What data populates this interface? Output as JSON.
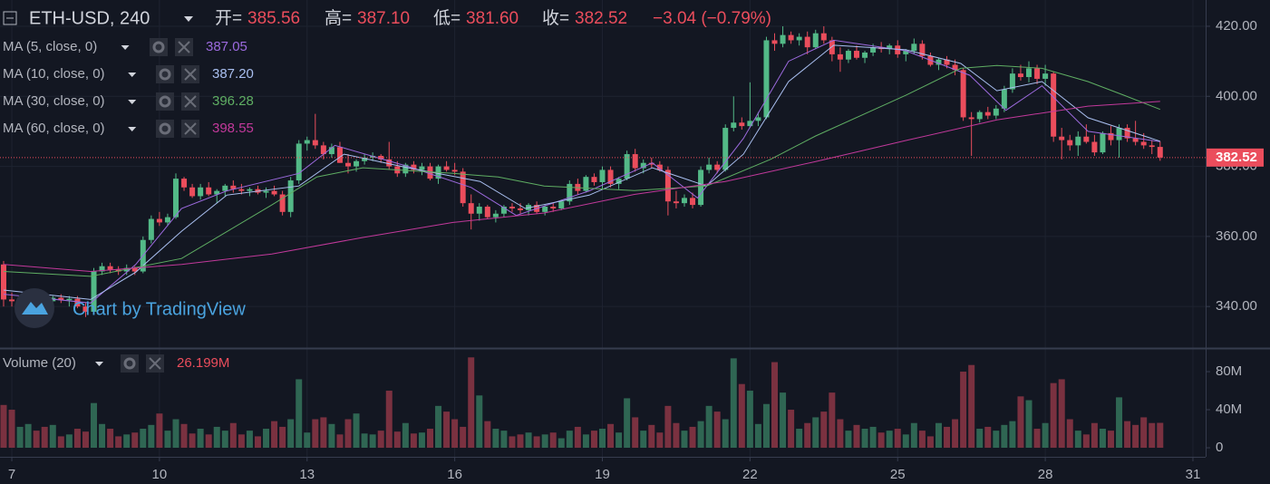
{
  "header": {
    "symbol": "ETH-USD, 240",
    "open_label": "开=",
    "open": "385.56",
    "high_label": "高=",
    "high": "387.10",
    "low_label": "低=",
    "low": "381.60",
    "close_label": "收=",
    "close": "382.52",
    "change": "−3.04 (−0.79%)"
  },
  "watermark": "Chart by TradingView",
  "chart_data": {
    "type": "candlestick",
    "up_color": "#53b987",
    "down_color": "#eb4d5c",
    "grid": true,
    "ylim": [
      328.4,
      427.5
    ],
    "yticks": [
      {
        "value": 340,
        "label": "340.00"
      },
      {
        "value": 360,
        "label": "360.00"
      },
      {
        "value": 380,
        "label": "380.00"
      },
      {
        "value": 400,
        "label": "400.00"
      },
      {
        "value": 420,
        "label": "420.00"
      }
    ],
    "xlim": [
      -0.44,
      146.55
    ],
    "xticks": [
      {
        "value": 1,
        "label": "7"
      },
      {
        "value": 19,
        "label": "10"
      },
      {
        "value": 37,
        "label": "13"
      },
      {
        "value": 55,
        "label": "16"
      },
      {
        "value": 73,
        "label": "19"
      },
      {
        "value": 91,
        "label": "22"
      },
      {
        "value": 109,
        "label": "25"
      },
      {
        "value": 127,
        "label": "28"
      },
      {
        "value": 145,
        "label": "31"
      }
    ],
    "candles": [
      [
        352,
        353,
        340,
        342
      ],
      [
        342,
        344,
        340,
        341.5
      ],
      [
        341.5,
        343,
        340,
        342.5
      ],
      [
        342.5,
        344,
        341,
        343
      ],
      [
        343,
        344,
        341.5,
        342
      ],
      [
        342,
        343.5,
        340.5,
        341.5
      ],
      [
        341.5,
        343,
        340,
        342.5
      ],
      [
        342.5,
        343.5,
        341,
        341.8
      ],
      [
        341.8,
        343,
        340,
        342.2
      ],
      [
        342.2,
        343,
        339.5,
        340
      ],
      [
        340,
        341,
        337,
        338.5
      ],
      [
        338.5,
        351,
        338,
        350
      ],
      [
        350,
        352.5,
        349,
        351.5
      ],
      [
        351.5,
        352.5,
        349.5,
        350.5
      ],
      [
        350.5,
        351.5,
        349,
        350
      ],
      [
        350,
        352,
        349,
        351
      ],
      [
        351,
        351.5,
        349,
        350
      ],
      [
        350,
        360,
        349.5,
        359
      ],
      [
        359,
        366,
        358,
        365
      ],
      [
        365,
        367,
        363,
        364
      ],
      [
        364,
        366.5,
        363,
        365.5
      ],
      [
        365.5,
        378,
        365,
        376.5
      ],
      [
        376.5,
        377,
        373,
        374
      ],
      [
        374,
        375,
        371,
        371.5
      ],
      [
        371.5,
        375,
        370.5,
        374
      ],
      [
        374,
        375.5,
        371.5,
        372
      ],
      [
        372,
        373.5,
        369.5,
        373
      ],
      [
        373,
        375,
        371.5,
        374.5
      ],
      [
        374.5,
        376,
        372.5,
        373.5
      ],
      [
        373.5,
        375,
        372,
        373
      ],
      [
        373,
        374,
        371.5,
        373.5
      ],
      [
        373.5,
        374.5,
        372,
        372.5
      ],
      [
        372.5,
        374,
        371,
        373
      ],
      [
        373,
        374.5,
        371.5,
        372
      ],
      [
        372,
        373,
        366,
        367
      ],
      [
        367,
        377,
        365.5,
        376
      ],
      [
        376,
        387.5,
        375,
        386.5
      ],
      [
        386.5,
        388.5,
        384.5,
        387.5
      ],
      [
        387.5,
        395,
        385,
        386
      ],
      [
        386,
        387,
        382,
        383.5
      ],
      [
        383.5,
        386.5,
        382.5,
        385.5
      ],
      [
        385.5,
        387,
        381,
        381
      ],
      [
        381,
        383.5,
        378,
        380
      ],
      [
        380,
        382,
        378.5,
        381.5
      ],
      [
        381.5,
        383.5,
        380.5,
        382.5
      ],
      [
        382.5,
        384,
        381.5,
        383
      ],
      [
        383,
        383.5,
        381,
        382
      ],
      [
        382,
        387,
        379,
        380
      ],
      [
        380,
        381.5,
        377,
        378
      ],
      [
        378,
        381,
        377,
        380.5
      ],
      [
        380.5,
        381.5,
        378,
        379
      ],
      [
        379,
        381,
        377.5,
        380
      ],
      [
        380,
        381,
        376,
        376.5
      ],
      [
        376.5,
        380.5,
        375,
        380
      ],
      [
        380,
        381.5,
        378.5,
        379
      ],
      [
        379,
        381,
        377.5,
        378.5
      ],
      [
        378.5,
        379.5,
        368.5,
        369.5
      ],
      [
        369.5,
        372,
        362,
        366.5
      ],
      [
        366.5,
        369.5,
        364.5,
        368.5
      ],
      [
        368.5,
        369,
        365,
        365.5
      ],
      [
        365.5,
        367.5,
        364,
        366.5
      ],
      [
        366.5,
        369,
        365.5,
        368.5
      ],
      [
        368.5,
        369.5,
        367,
        368
      ],
      [
        368,
        369.5,
        366.5,
        367.5
      ],
      [
        367.5,
        369.5,
        366,
        369
      ],
      [
        369,
        370,
        366.5,
        367
      ],
      [
        367,
        369,
        366,
        368.5
      ],
      [
        368.5,
        369.5,
        367,
        368
      ],
      [
        368,
        370.5,
        367.5,
        370
      ],
      [
        370,
        376,
        369,
        375
      ],
      [
        375,
        376.5,
        372,
        373
      ],
      [
        373,
        377.5,
        372.5,
        377
      ],
      [
        377,
        378,
        374.5,
        375.5
      ],
      [
        375.5,
        380,
        373.5,
        379
      ],
      [
        379,
        380,
        374,
        375
      ],
      [
        375,
        377,
        373.5,
        376.5
      ],
      [
        376.5,
        384.5,
        376,
        383.5
      ],
      [
        383.5,
        385,
        378.5,
        379.5
      ],
      [
        379.5,
        382,
        378,
        381
      ],
      [
        381,
        382.5,
        379.5,
        380.5
      ],
      [
        380.5,
        381.5,
        378.5,
        379
      ],
      [
        379,
        380,
        366,
        370
      ],
      [
        370,
        373,
        368,
        369.5
      ],
      [
        369.5,
        372,
        368.5,
        371
      ],
      [
        371,
        372.5,
        368,
        369
      ],
      [
        369,
        380,
        368.5,
        379
      ],
      [
        379,
        382.5,
        378,
        380.5
      ],
      [
        380.5,
        381.5,
        378,
        379
      ],
      [
        379,
        392,
        378.5,
        391
      ],
      [
        391,
        400,
        390,
        392.5
      ],
      [
        392.5,
        394,
        390.5,
        391.5
      ],
      [
        391.5,
        404,
        391,
        393
      ],
      [
        393,
        395.5,
        391.5,
        394
      ],
      [
        394,
        417,
        393.5,
        416
      ],
      [
        416,
        418,
        413,
        415
      ],
      [
        415,
        420,
        414,
        417.5
      ],
      [
        417.5,
        418.5,
        415,
        416
      ],
      [
        416,
        418,
        414.5,
        417
      ],
      [
        417,
        418.5,
        412,
        414
      ],
      [
        414,
        419,
        413.5,
        418
      ],
      [
        418,
        420,
        415,
        416
      ],
      [
        416,
        417,
        410,
        412
      ],
      [
        412,
        414,
        407,
        410.5
      ],
      [
        410.5,
        413.5,
        409.5,
        413
      ],
      [
        413,
        414.5,
        410.5,
        411
      ],
      [
        411,
        413,
        409.5,
        412.5
      ],
      [
        412.5,
        415,
        411.5,
        414
      ],
      [
        414,
        415.5,
        412.5,
        413.5
      ],
      [
        413.5,
        415,
        412,
        414.5
      ],
      [
        414.5,
        416,
        411,
        412
      ],
      [
        412,
        413.5,
        410,
        413
      ],
      [
        413,
        416.5,
        412,
        415
      ],
      [
        415,
        416,
        410.5,
        411.5
      ],
      [
        411.5,
        412.5,
        408.5,
        409
      ],
      [
        409,
        411,
        407.5,
        410.5
      ],
      [
        410.5,
        411.5,
        408,
        409
      ],
      [
        409,
        410.5,
        406,
        407.5
      ],
      [
        407.5,
        408,
        393,
        394
      ],
      [
        394,
        395.5,
        383,
        393.5
      ],
      [
        393.5,
        396,
        392.5,
        395.5
      ],
      [
        395.5,
        397,
        393.5,
        394.5
      ],
      [
        394.5,
        397.5,
        393.5,
        396.5
      ],
      [
        396.5,
        403,
        395.5,
        402
      ],
      [
        402,
        408,
        401,
        406.5
      ],
      [
        406.5,
        409,
        404.5,
        405.5
      ],
      [
        405.5,
        410,
        404,
        408
      ],
      [
        408,
        409,
        403.5,
        405
      ],
      [
        405,
        409,
        403,
        406.5
      ],
      [
        406.5,
        407,
        387,
        388.5
      ],
      [
        388.5,
        391,
        382,
        387.5
      ],
      [
        387.5,
        389,
        384.5,
        386
      ],
      [
        386,
        390,
        383,
        388.5
      ],
      [
        388.5,
        392,
        386.5,
        387
      ],
      [
        387,
        389,
        383,
        384
      ],
      [
        384,
        390,
        383.5,
        389.5
      ],
      [
        389.5,
        391.5,
        386,
        387.5
      ],
      [
        387.5,
        392,
        382.5,
        391
      ],
      [
        391,
        392,
        387,
        388
      ],
      [
        388,
        393,
        386,
        387
      ],
      [
        387,
        389.5,
        385,
        386
      ],
      [
        386,
        387.5,
        383.5,
        385.56
      ],
      [
        385.56,
        387.1,
        381.6,
        382.52
      ]
    ],
    "ma": [
      {
        "name": "MA (5, close, 0)",
        "color": "#9c6ade",
        "last": 387.05,
        "last_label": "387.05",
        "x": [
          0,
          10.6,
          16.1,
          21.7,
          27.2,
          36,
          40.4,
          49.3,
          57,
          62.5,
          71.4,
          79.1,
          84.6,
          90.2,
          95.7,
          101.2,
          110,
          117.8,
          122.2,
          126.6,
          132.2,
          141
        ],
        "values": [
          343.5,
          341,
          352,
          368,
          373,
          378,
          386,
          380,
          374,
          366,
          373,
          381,
          371,
          388,
          410,
          416,
          413,
          406,
          396,
          403,
          390,
          387.05
        ]
      },
      {
        "name": "MA (10, close, 0)",
        "color": "#a9bff0",
        "last": 387.2,
        "last_label": "387.20",
        "x": [
          0,
          10.6,
          16.1,
          21.7,
          27.2,
          36,
          41.5,
          49.3,
          58.1,
          63.6,
          71.4,
          79.1,
          85.7,
          90.2,
          95.7,
          101.2,
          110,
          116.7,
          121.1,
          126.6,
          132.2,
          141
        ],
        "values": [
          344.7,
          342,
          349.8,
          361.5,
          371.8,
          374.4,
          383.5,
          379.6,
          375.7,
          368,
          371.8,
          379.6,
          374.4,
          383.5,
          404.2,
          414.6,
          413.3,
          409.4,
          401.6,
          404.2,
          393.9,
          387.2
        ]
      },
      {
        "name": "MA (30, close, 0)",
        "color": "#5fae63",
        "last": 396.28,
        "last_label": "396.28",
        "x": [
          0,
          10.6,
          21.7,
          32.7,
          38.2,
          43.8,
          54.8,
          60.3,
          65.9,
          76.9,
          85.7,
          93.5,
          99,
          110,
          116.7,
          121.1,
          126.6,
          132.2,
          136.6,
          141
        ],
        "values": [
          350,
          348.6,
          353.7,
          369,
          377,
          379.6,
          378,
          377,
          374.4,
          373.1,
          374.4,
          382,
          388.7,
          400.3,
          408,
          408.8,
          408,
          404.2,
          400.3,
          396.28
        ]
      },
      {
        "name": "MA (60, close, 0)",
        "color": "#c2399b",
        "last": 398.55,
        "last_label": "398.55",
        "x": [
          0,
          10.6,
          21.7,
          32.7,
          43.8,
          54.8,
          65.9,
          76.9,
          88,
          99,
          110,
          121.1,
          132.2,
          141
        ],
        "values": [
          352,
          350,
          352,
          355,
          359.7,
          364,
          366.7,
          372,
          375.7,
          381.4,
          387.4,
          393.3,
          397.2,
          398.55
        ]
      }
    ],
    "volume": {
      "name": "Volume (20)",
      "up_color": "#2f6653",
      "down_color": "#7a3140",
      "last_label": "26.199M",
      "ylim": [
        -9.5,
        102.9
      ],
      "yticks": [
        0,
        {
          "value": 40,
          "label": "40M"
        },
        {
          "value": 80,
          "label": "80M"
        }
      ],
      "values": [
        45,
        40,
        22,
        25,
        18,
        22,
        24,
        12,
        14,
        20,
        17,
        47,
        25,
        20,
        12,
        14,
        16,
        20,
        24,
        36,
        18,
        30,
        25,
        15,
        20,
        14,
        22,
        18,
        26,
        14,
        18,
        12,
        20,
        28,
        22,
        30,
        72,
        16,
        30,
        32,
        25,
        14,
        30,
        36,
        15,
        14,
        18,
        60,
        17,
        26,
        15,
        16,
        20,
        44,
        38,
        30,
        22,
        95,
        55,
        28,
        20,
        18,
        12,
        14,
        16,
        12,
        14,
        16,
        10,
        18,
        22,
        14,
        18,
        20,
        25,
        16,
        52,
        32,
        18,
        24,
        16,
        44,
        26,
        18,
        22,
        28,
        44,
        38,
        30,
        94,
        67,
        60,
        25,
        46,
        90,
        58,
        40,
        20,
        26,
        32,
        38,
        58,
        30,
        18,
        24,
        20,
        22,
        16,
        18,
        20,
        14,
        26,
        18,
        12,
        26,
        22,
        30,
        80,
        87,
        20,
        22,
        18,
        24,
        28,
        54,
        50,
        20,
        26,
        68,
        72,
        30,
        18,
        14,
        26,
        20,
        18,
        53,
        28,
        24,
        32,
        26,
        26.199
      ]
    }
  }
}
